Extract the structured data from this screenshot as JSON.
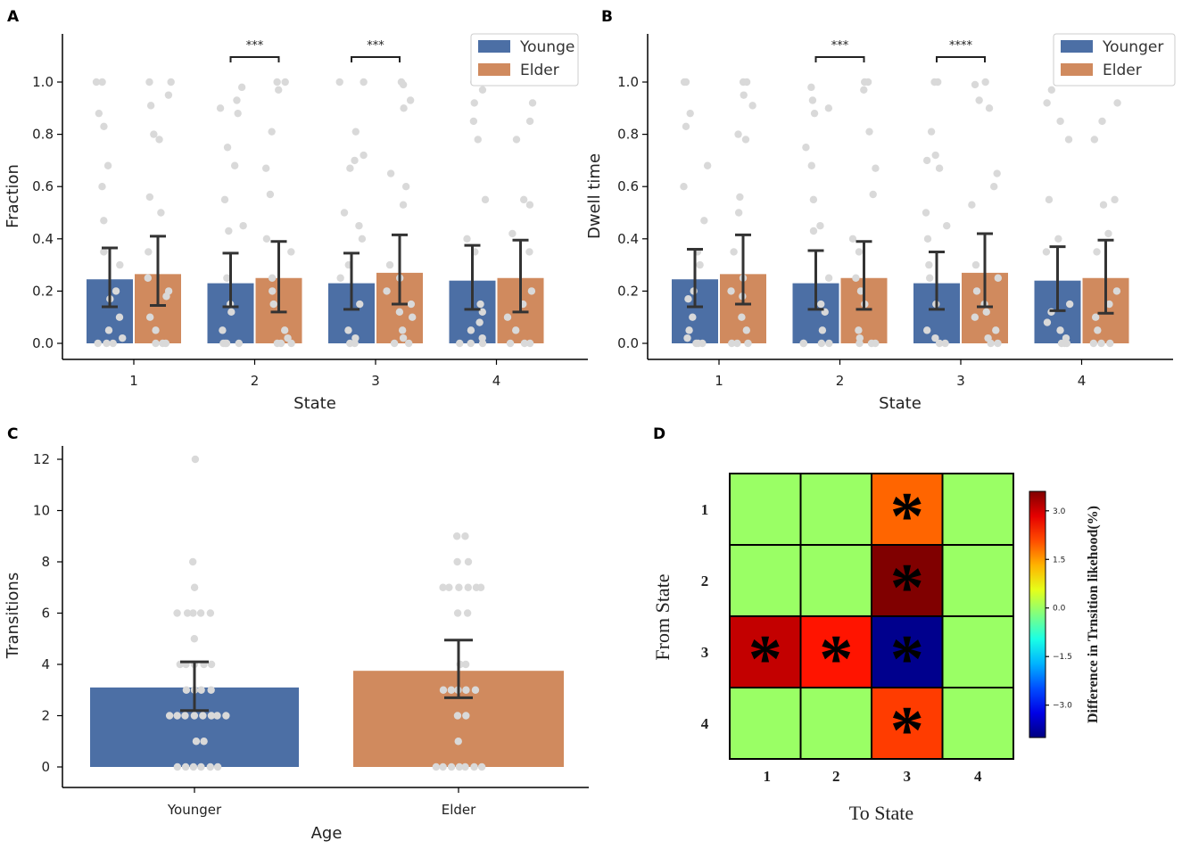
{
  "panels": {
    "A": "A",
    "B": "B",
    "C": "C",
    "D": "D"
  },
  "colors": {
    "younger": "#4c6fa5",
    "elder": "#d08a5e",
    "dots": "#d9d9d9",
    "error": "#333333"
  },
  "chart_data": [
    {
      "id": "A",
      "type": "bar",
      "title": "",
      "xlabel": "State",
      "ylabel": "Fraction",
      "categories": [
        "1",
        "2",
        "3",
        "4"
      ],
      "ylim": [
        -0.05,
        1.18
      ],
      "yticks": [
        "0.0",
        "0.2",
        "0.4",
        "0.6",
        "0.8",
        "1.0"
      ],
      "legend": {
        "position": "top-right",
        "entries": [
          "Younge",
          "Elder"
        ]
      },
      "series": [
        {
          "name": "Younger",
          "values": [
            0.245,
            0.23,
            0.23,
            0.24
          ],
          "err_low": [
            0.14,
            0.14,
            0.13,
            0.13
          ],
          "err_high": [
            0.365,
            0.345,
            0.345,
            0.375
          ]
        },
        {
          "name": "Elder",
          "values": [
            0.265,
            0.25,
            0.27,
            0.25
          ],
          "err_low": [
            0.145,
            0.12,
            0.15,
            0.12
          ],
          "err_high": [
            0.41,
            0.39,
            0.415,
            0.395
          ]
        }
      ],
      "significance": [
        {
          "category": "2",
          "label": "***"
        },
        {
          "category": "3",
          "label": "***"
        }
      ],
      "points": {
        "Younger": [
          [
            1.0,
            1.0,
            0.88,
            0.83,
            0.68,
            0.6,
            0.47,
            0.35,
            0.3,
            0.2,
            0.17,
            0.1,
            0.05,
            0.02,
            0.0,
            0.0,
            0.0
          ],
          [
            0.98,
            0.93,
            0.9,
            0.88,
            0.75,
            0.68,
            0.55,
            0.45,
            0.43,
            0.25,
            0.15,
            0.12,
            0.05,
            0.0,
            0.0,
            0.0,
            0.0
          ],
          [
            1.0,
            1.0,
            0.81,
            0.72,
            0.7,
            0.67,
            0.5,
            0.45,
            0.4,
            0.3,
            0.25,
            0.15,
            0.05,
            0.02,
            0.0,
            0.0
          ],
          [
            1.0,
            0.97,
            0.92,
            0.85,
            0.78,
            0.55,
            0.4,
            0.35,
            0.15,
            0.12,
            0.08,
            0.05,
            0.02,
            0.0,
            0.0,
            0.0
          ]
        ],
        "Elder": [
          [
            1.0,
            1.0,
            0.95,
            0.91,
            0.8,
            0.78,
            0.56,
            0.5,
            0.35,
            0.25,
            0.2,
            0.18,
            0.1,
            0.05,
            0.0,
            0.0,
            0.0
          ],
          [
            1.0,
            1.0,
            0.97,
            0.81,
            0.67,
            0.57,
            0.4,
            0.35,
            0.25,
            0.2,
            0.15,
            0.05,
            0.02,
            0.0,
            0.0,
            0.0
          ],
          [
            1.0,
            0.99,
            0.93,
            0.9,
            0.65,
            0.6,
            0.53,
            0.3,
            0.25,
            0.2,
            0.15,
            0.12,
            0.1,
            0.05,
            0.02,
            0.0,
            0.0
          ],
          [
            1.0,
            0.92,
            0.85,
            0.78,
            0.55,
            0.53,
            0.42,
            0.35,
            0.2,
            0.15,
            0.1,
            0.05,
            0.0,
            0.0,
            0.0
          ]
        ]
      }
    },
    {
      "id": "B",
      "type": "bar",
      "title": "",
      "xlabel": "State",
      "ylabel": "Dwell time",
      "categories": [
        "1",
        "2",
        "3",
        "4"
      ],
      "ylim": [
        -0.05,
        1.18
      ],
      "yticks": [
        "0.0",
        "0.2",
        "0.4",
        "0.6",
        "0.8",
        "1.0"
      ],
      "legend": {
        "position": "top-right",
        "entries": [
          "Younger",
          "Elder"
        ]
      },
      "series": [
        {
          "name": "Younger",
          "values": [
            0.245,
            0.23,
            0.23,
            0.24
          ],
          "err_low": [
            0.14,
            0.13,
            0.13,
            0.125
          ],
          "err_high": [
            0.36,
            0.355,
            0.35,
            0.37
          ]
        },
        {
          "name": "Elder",
          "values": [
            0.265,
            0.25,
            0.27,
            0.25
          ],
          "err_low": [
            0.15,
            0.13,
            0.14,
            0.115
          ],
          "err_high": [
            0.415,
            0.39,
            0.42,
            0.395
          ]
        }
      ],
      "significance": [
        {
          "category": "2",
          "label": "***"
        },
        {
          "category": "3",
          "label": "****"
        }
      ],
      "points": {
        "Younger": [
          [
            1.0,
            1.0,
            0.88,
            0.83,
            0.68,
            0.6,
            0.47,
            0.35,
            0.3,
            0.2,
            0.17,
            0.1,
            0.05,
            0.02,
            0.0,
            0.0,
            0.0
          ],
          [
            0.98,
            0.93,
            0.9,
            0.88,
            0.75,
            0.68,
            0.55,
            0.45,
            0.43,
            0.25,
            0.15,
            0.12,
            0.05,
            0.0,
            0.0,
            0.0,
            0.0
          ],
          [
            1.0,
            1.0,
            0.81,
            0.72,
            0.7,
            0.67,
            0.5,
            0.45,
            0.4,
            0.3,
            0.25,
            0.15,
            0.05,
            0.02,
            0.0,
            0.0
          ],
          [
            1.0,
            0.97,
            0.92,
            0.85,
            0.78,
            0.55,
            0.4,
            0.35,
            0.15,
            0.12,
            0.08,
            0.05,
            0.02,
            0.0,
            0.0,
            0.0
          ]
        ],
        "Elder": [
          [
            1.0,
            1.0,
            0.95,
            0.91,
            0.8,
            0.78,
            0.56,
            0.5,
            0.35,
            0.25,
            0.2,
            0.18,
            0.1,
            0.05,
            0.0,
            0.0,
            0.0
          ],
          [
            1.0,
            1.0,
            0.97,
            0.81,
            0.67,
            0.57,
            0.4,
            0.35,
            0.25,
            0.2,
            0.15,
            0.05,
            0.02,
            0.0,
            0.0,
            0.0
          ],
          [
            1.0,
            0.99,
            0.93,
            0.9,
            0.65,
            0.6,
            0.53,
            0.3,
            0.25,
            0.2,
            0.15,
            0.12,
            0.1,
            0.05,
            0.02,
            0.0,
            0.0
          ],
          [
            1.0,
            0.92,
            0.85,
            0.78,
            0.55,
            0.53,
            0.42,
            0.35,
            0.2,
            0.15,
            0.1,
            0.05,
            0.0,
            0.0,
            0.0
          ]
        ]
      }
    },
    {
      "id": "C",
      "type": "bar",
      "title": "",
      "xlabel": "Age",
      "ylabel": "Transitions",
      "categories": [
        "Younger",
        "Elder"
      ],
      "ylim": [
        -0.8,
        12.9
      ],
      "yticks": [
        "0",
        "2",
        "4",
        "6",
        "8",
        "10",
        "12"
      ],
      "values": [
        3.1,
        3.75
      ],
      "err_low": [
        2.2,
        2.7
      ],
      "err_high": [
        4.1,
        4.95
      ],
      "points": [
        [
          12,
          8,
          7,
          6,
          6,
          6,
          6,
          6,
          5,
          4,
          4,
          4,
          4,
          4,
          3,
          3,
          3,
          3,
          2,
          2,
          2,
          2,
          2,
          2,
          2,
          2,
          1,
          1,
          0,
          0,
          0,
          0,
          0,
          0
        ],
        [
          9,
          9,
          8,
          8,
          7,
          7,
          7,
          7,
          7,
          7,
          6,
          6,
          4,
          4,
          3,
          3,
          3,
          3,
          3,
          2,
          2,
          1,
          0,
          0,
          0,
          0,
          0,
          0,
          0
        ]
      ]
    },
    {
      "id": "D",
      "type": "heatmap",
      "title": "",
      "xlabel": "To State",
      "ylabel": "From State",
      "x_categories": [
        "1",
        "2",
        "3",
        "4"
      ],
      "y_categories": [
        "1",
        "2",
        "3",
        "4"
      ],
      "values": [
        [
          0.0,
          0.0,
          1.9,
          0.0
        ],
        [
          0.0,
          0.0,
          3.6,
          0.0
        ],
        [
          3.1,
          2.5,
          -3.9,
          0.0
        ],
        [
          0.0,
          0.0,
          2.2,
          0.0
        ]
      ],
      "significant": [
        [
          false,
          false,
          true,
          false
        ],
        [
          false,
          false,
          true,
          false
        ],
        [
          true,
          true,
          true,
          false
        ],
        [
          false,
          false,
          true,
          false
        ]
      ],
      "marker": "*",
      "colorbar": {
        "label": "Difference in Trnsition likehood(%)",
        "range": [
          -4.0,
          3.6
        ],
        "ticks": [
          "3.0",
          "1.5",
          "0.0",
          "−1.5",
          "−3.0"
        ]
      }
    }
  ]
}
